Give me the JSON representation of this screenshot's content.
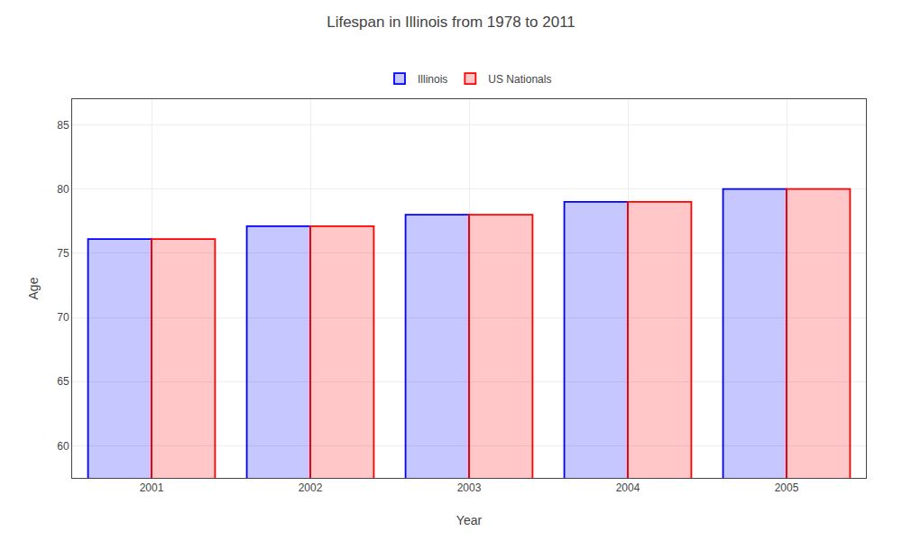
{
  "chart_data": {
    "type": "bar",
    "title": "Lifespan in Illinois from 1978 to 2011",
    "xlabel": "Year",
    "ylabel": "Age",
    "categories": [
      "2001",
      "2002",
      "2003",
      "2004",
      "2005"
    ],
    "series": [
      {
        "name": "Illinois",
        "color": "#0000ff",
        "values": [
          76.1,
          77.1,
          78.0,
          79.0,
          80.0
        ]
      },
      {
        "name": "US Nationals",
        "color": "#ff0000",
        "values": [
          76.1,
          77.1,
          78.0,
          79.0,
          80.0
        ]
      }
    ],
    "ylim": [
      57.5,
      87
    ],
    "yticks": [
      60,
      65,
      70,
      75,
      80,
      85
    ],
    "grid": true,
    "legend": "upper center"
  }
}
